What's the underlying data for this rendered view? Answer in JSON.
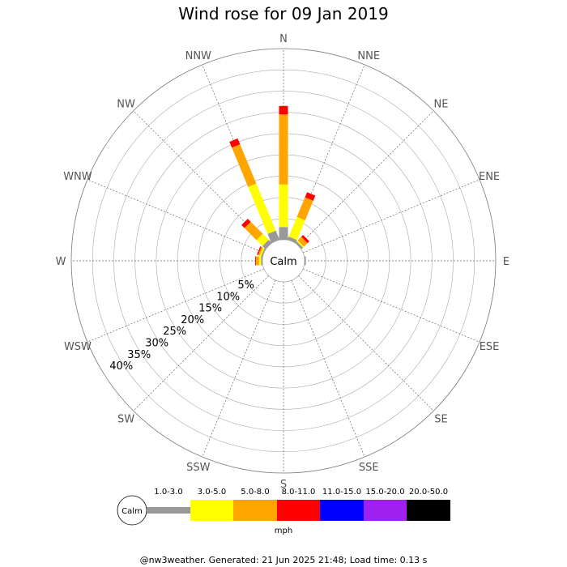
{
  "chart_data": {
    "type": "wind-rose",
    "title": "Wind rose for 09 Jan 2019",
    "directions": [
      "N",
      "NNE",
      "NE",
      "ENE",
      "E",
      "ESE",
      "SE",
      "SSE",
      "S",
      "SSW",
      "SW",
      "WSW",
      "W",
      "WNW",
      "NW",
      "NNW"
    ],
    "radial_ticks": [
      "5%",
      "10%",
      "15%",
      "20%",
      "25%",
      "30%",
      "35%",
      "40%"
    ],
    "radial_max": 45,
    "calm_label": "Calm",
    "bins": [
      {
        "label": "1.0-3.0",
        "color": "#999999"
      },
      {
        "label": "3.0-5.0",
        "color": "#ffff00"
      },
      {
        "label": "5.0-8.0",
        "color": "#ffa500"
      },
      {
        "label": "8.0-11.0",
        "color": "#ff0000"
      },
      {
        "label": "11.0-15.0",
        "color": "#0000ff"
      },
      {
        "label": "15.0-20.0",
        "color": "#a020f0"
      },
      {
        "label": "20.0-50.0",
        "color": "#000000"
      }
    ],
    "unit": "mph",
    "series": [
      {
        "direction": "N",
        "values": [
          3,
          10,
          16.5,
          2,
          0,
          0,
          0
        ]
      },
      {
        "direction": "NNE",
        "values": [
          0.8,
          5,
          5,
          1.3,
          0,
          0,
          0
        ]
      },
      {
        "direction": "NE",
        "values": [
          0.5,
          0.3,
          1.2,
          0.6,
          0,
          0,
          0
        ]
      },
      {
        "direction": "E",
        "values": [
          0.3,
          0,
          0,
          0,
          0,
          0,
          0
        ]
      },
      {
        "direction": "W",
        "values": [
          0.3,
          0.5,
          0.7,
          0.2,
          0,
          0,
          0
        ]
      },
      {
        "direction": "WNW",
        "values": [
          0.3,
          0.4,
          0.4,
          0.3,
          0,
          0,
          0
        ]
      },
      {
        "direction": "NW",
        "values": [
          1,
          2,
          4,
          1,
          0,
          0,
          0
        ]
      },
      {
        "direction": "NNW",
        "values": [
          2.3,
          12,
          10,
          1.5,
          0,
          0,
          0
        ]
      }
    ]
  },
  "footer": "@nw3weather. Generated: 21 Jun 2025 21:48; Load time: 0.13 s"
}
